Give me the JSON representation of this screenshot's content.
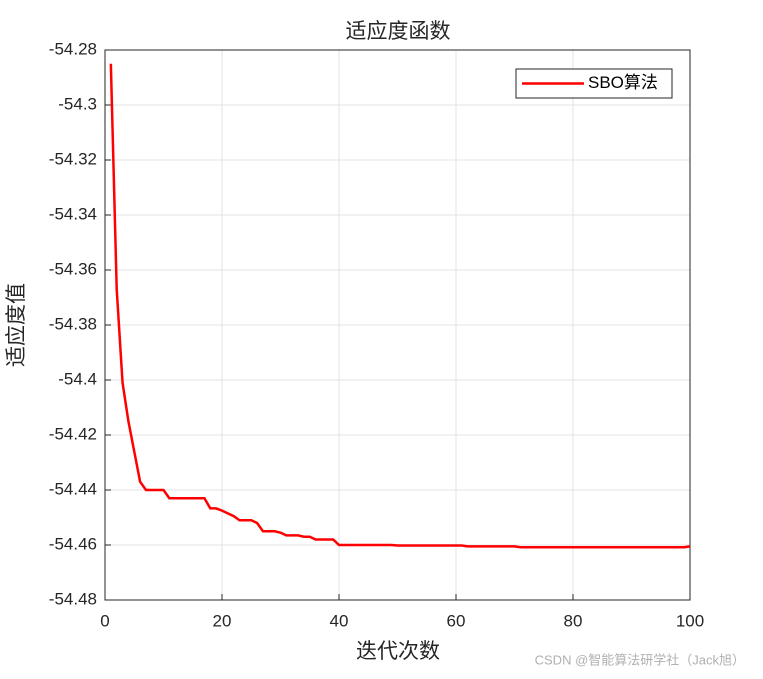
{
  "chart_data": {
    "type": "line",
    "title": "适应度函数",
    "xlabel": "迭代次数",
    "ylabel": "适应度值",
    "x": [
      1,
      2,
      3,
      4,
      5,
      6,
      7,
      8,
      9,
      10,
      11,
      12,
      13,
      14,
      15,
      16,
      17,
      18,
      19,
      20,
      21,
      22,
      23,
      24,
      25,
      26,
      27,
      28,
      29,
      30,
      31,
      32,
      33,
      34,
      35,
      36,
      37,
      38,
      39,
      40,
      41,
      42,
      43,
      44,
      45,
      46,
      47,
      48,
      49,
      50,
      51,
      52,
      53,
      54,
      55,
      56,
      57,
      58,
      59,
      60,
      61,
      62,
      63,
      64,
      65,
      66,
      67,
      68,
      69,
      70,
      71,
      72,
      73,
      74,
      75,
      76,
      77,
      78,
      79,
      80,
      81,
      82,
      83,
      84,
      85,
      86,
      87,
      88,
      89,
      90,
      91,
      92,
      93,
      94,
      95,
      96,
      97,
      98,
      99,
      100
    ],
    "series": [
      {
        "name": "SBO算法",
        "color": "#ff0000",
        "values": [
          -54.285,
          -54.367,
          -54.401,
          -54.415,
          -54.426,
          -54.437,
          -54.44,
          -54.44,
          -54.44,
          -54.44,
          -54.443,
          -54.443,
          -54.443,
          -54.443,
          -54.443,
          -54.443,
          -54.443,
          -54.4467,
          -54.4467,
          -54.4475,
          -54.4485,
          -54.4495,
          -54.451,
          -54.451,
          -54.451,
          -54.452,
          -54.455,
          -54.455,
          -54.455,
          -54.4555,
          -54.4565,
          -54.4565,
          -54.4565,
          -54.457,
          -54.457,
          -54.458,
          -54.458,
          -54.458,
          -54.458,
          -54.46,
          -54.46,
          -54.46,
          -54.46,
          -54.46,
          -54.46,
          -54.46,
          -54.46,
          -54.46,
          -54.46,
          -54.4602,
          -54.4602,
          -54.4602,
          -54.4602,
          -54.4602,
          -54.4602,
          -54.4602,
          -54.4602,
          -54.4602,
          -54.4602,
          -54.4602,
          -54.4602,
          -54.4605,
          -54.4605,
          -54.4605,
          -54.4605,
          -54.4605,
          -54.4605,
          -54.4605,
          -54.4605,
          -54.4605,
          -54.4608,
          -54.4608,
          -54.4608,
          -54.4608,
          -54.4608,
          -54.4608,
          -54.4608,
          -54.4608,
          -54.4608,
          -54.4608,
          -54.4608,
          -54.4608,
          -54.4608,
          -54.4608,
          -54.4608,
          -54.4608,
          -54.4608,
          -54.4608,
          -54.4608,
          -54.4608,
          -54.4608,
          -54.4608,
          -54.4608,
          -54.4608,
          -54.4608,
          -54.4608,
          -54.4608,
          -54.4608,
          -54.4608,
          -54.4605
        ]
      }
    ],
    "xlim": [
      0,
      100
    ],
    "xticks": [
      0,
      20,
      40,
      60,
      80,
      100
    ],
    "ylim": [
      -54.48,
      -54.28
    ],
    "yticks": [
      -54.48,
      -54.46,
      -54.44,
      -54.42,
      -54.4,
      -54.38,
      -54.36,
      -54.34,
      -54.32,
      -54.3,
      -54.28
    ],
    "grid": true,
    "legend": "upper right",
    "watermark": "CSDN @智能算法研学社（Jack旭）"
  }
}
